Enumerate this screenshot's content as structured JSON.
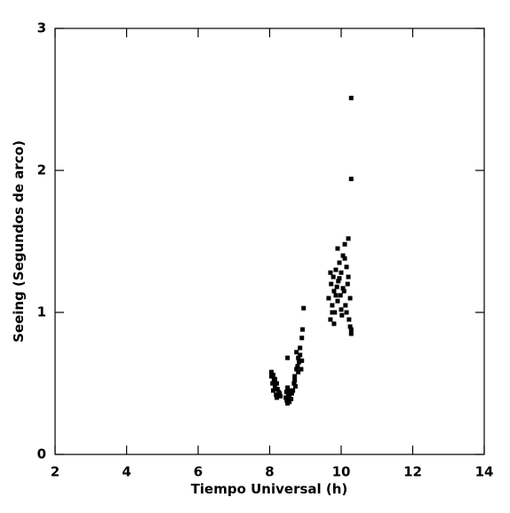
{
  "chart_data": {
    "type": "scatter",
    "xlabel": "Tiempo Universal (h)",
    "ylabel": "Seeing (Segundos de arco)",
    "xlim": [
      2,
      14
    ],
    "ylim": [
      0,
      3
    ],
    "xticks": [
      2,
      4,
      6,
      8,
      10,
      12,
      14
    ],
    "yticks": [
      0,
      1,
      2,
      3
    ],
    "color": "#000000",
    "x": [
      8.05,
      8.08,
      8.1,
      8.12,
      8.15,
      8.18,
      8.2,
      8.22,
      8.25,
      8.05,
      8.1,
      8.15,
      8.2,
      8.28,
      8.3,
      8.45,
      8.48,
      8.5,
      8.52,
      8.55,
      8.58,
      8.6,
      8.5,
      8.47,
      8.55,
      8.62,
      8.5,
      8.65,
      8.68,
      8.7,
      8.72,
      8.75,
      8.78,
      8.8,
      8.82,
      8.85,
      8.88,
      8.9,
      8.7,
      8.75,
      8.8,
      8.85,
      8.9,
      8.95,
      8.92,
      9.65,
      9.7,
      9.72,
      9.75,
      9.78,
      9.8,
      9.82,
      9.85,
      9.88,
      9.9,
      9.92,
      9.95,
      9.98,
      10.0,
      10.02,
      10.05,
      10.08,
      10.1,
      10.12,
      10.15,
      10.18,
      10.2,
      10.22,
      10.25,
      10.28,
      9.7,
      9.8,
      9.9,
      10.0,
      10.1,
      10.2,
      10.25,
      9.75,
      9.85,
      9.95,
      10.05,
      10.15,
      10.28,
      10.28,
      10.28
    ],
    "y": [
      0.55,
      0.5,
      0.45,
      0.52,
      0.48,
      0.42,
      0.4,
      0.46,
      0.44,
      0.58,
      0.56,
      0.53,
      0.5,
      0.43,
      0.41,
      0.4,
      0.38,
      0.36,
      0.42,
      0.37,
      0.45,
      0.39,
      0.47,
      0.44,
      0.41,
      0.43,
      0.68,
      0.45,
      0.5,
      0.55,
      0.48,
      0.6,
      0.62,
      0.58,
      0.65,
      0.7,
      0.6,
      0.66,
      0.52,
      0.72,
      0.68,
      0.75,
      0.82,
      1.03,
      0.88,
      1.1,
      0.95,
      1.2,
      1.05,
      1.25,
      1.15,
      1.0,
      1.3,
      1.18,
      1.08,
      1.22,
      1.35,
      1.12,
      1.28,
      0.98,
      1.4,
      1.15,
      1.48,
      1.05,
      1.32,
      1.2,
      1.52,
      0.95,
      1.1,
      0.85,
      1.28,
      0.92,
      1.45,
      1.02,
      1.38,
      1.25,
      0.9,
      1.0,
      1.12,
      1.24,
      1.17,
      1.0,
      0.88,
      1.94,
      2.51
    ]
  }
}
